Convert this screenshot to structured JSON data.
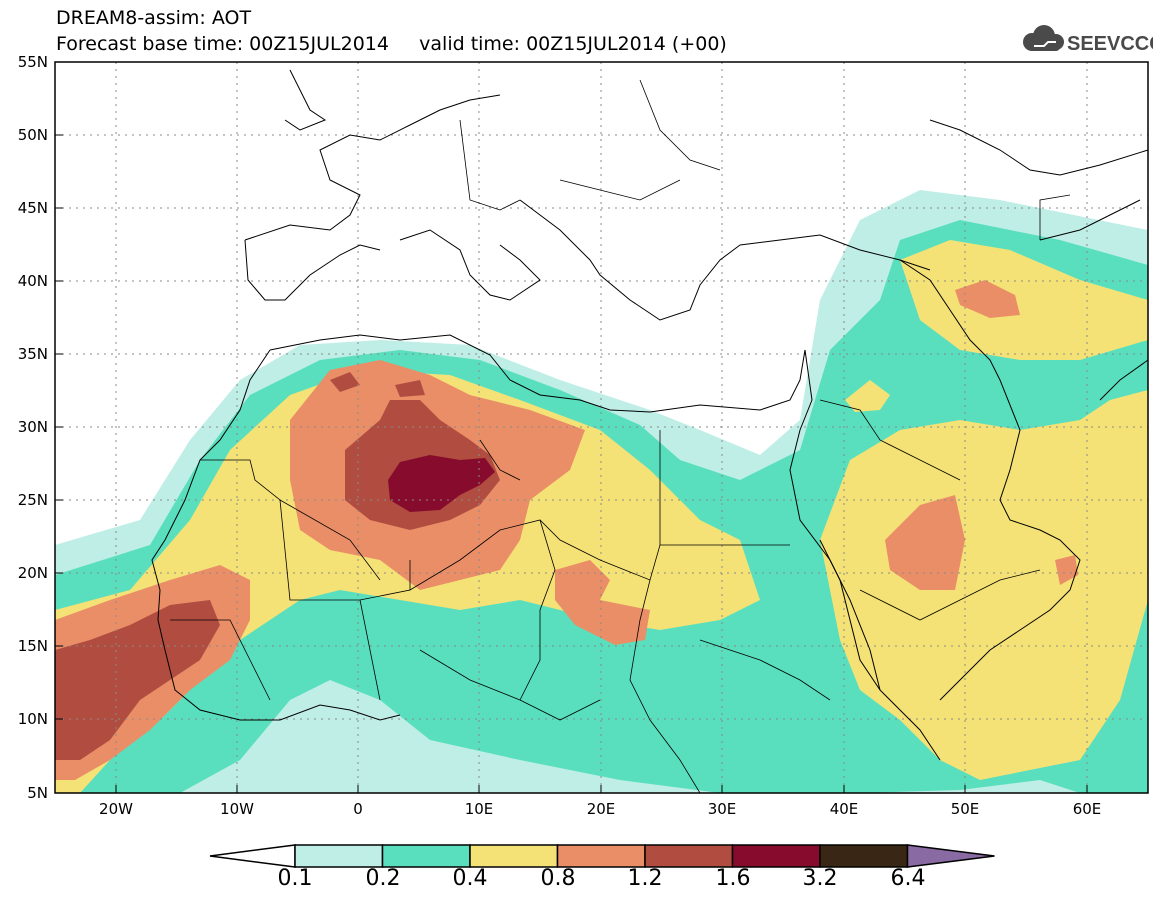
{
  "header": {
    "title_line1": "DREAM8-assim: AOT",
    "title_line2": "Forecast base time: 00Z15JUL2014     valid time: 00Z15JUL2014 (+00)",
    "logo_text": "SEEVCCC"
  },
  "map": {
    "lon_range": [
      -25,
      65
    ],
    "lat_range": [
      5,
      55
    ],
    "y_labels": [
      "55N",
      "50N",
      "45N",
      "40N",
      "35N",
      "30N",
      "25N",
      "20N",
      "15N",
      "10N",
      "5N"
    ],
    "x_labels": [
      "20W",
      "10W",
      "0",
      "10E",
      "20E",
      "30E",
      "40E",
      "50E",
      "60E"
    ]
  },
  "colorbar": {
    "labels": [
      "0.1",
      "0.2",
      "0.4",
      "0.8",
      "1.2",
      "1.6",
      "3.2",
      "6.4"
    ],
    "colors": [
      "#ffffff",
      "#bfeee6",
      "#59dfbd",
      "#f5e276",
      "#ea8e67",
      "#b04d40",
      "#860b2d",
      "#3a2614",
      "#8a6aa3"
    ]
  }
}
